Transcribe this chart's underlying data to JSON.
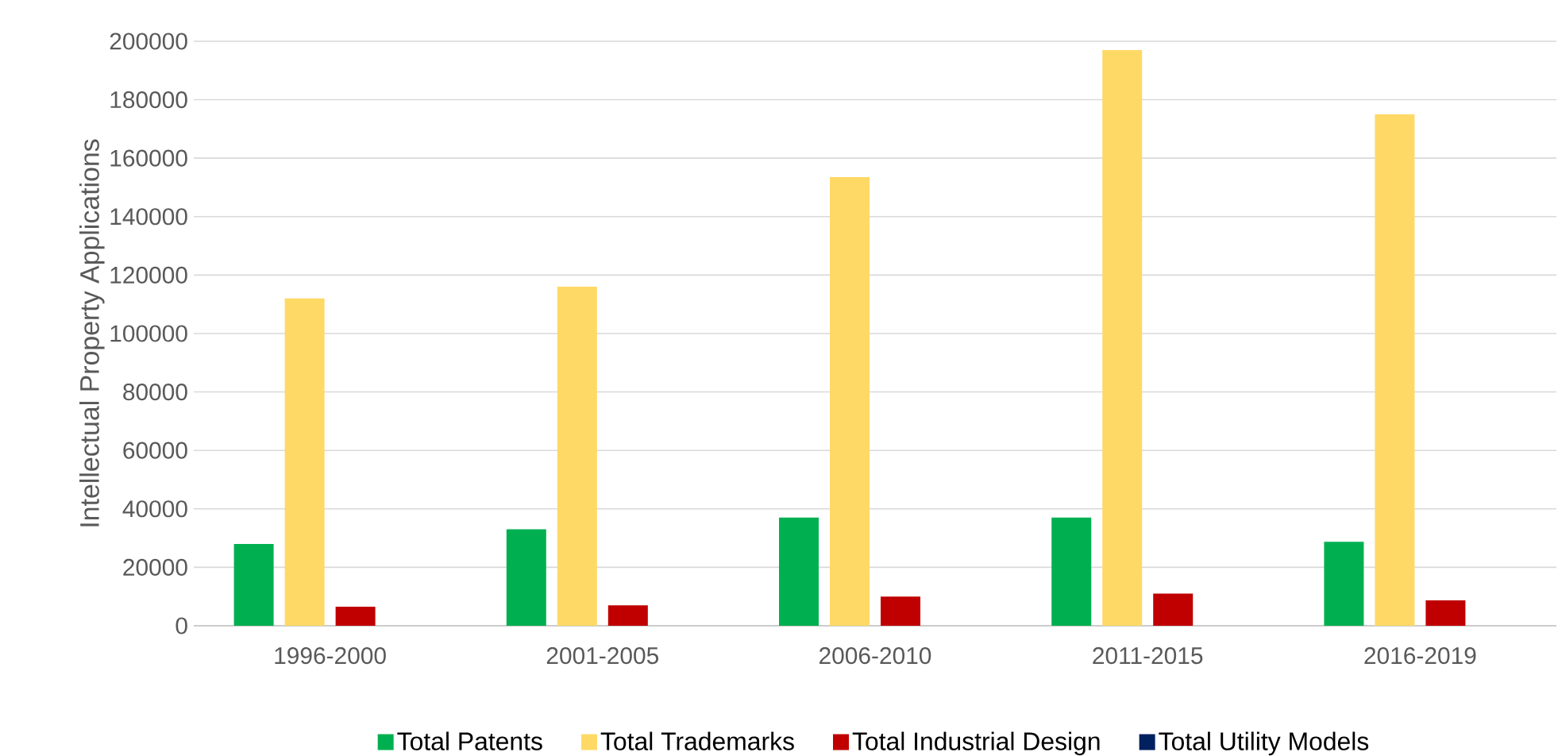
{
  "chart_data": {
    "type": "bar",
    "ylabel": "Intellectual Property Applications",
    "categories": [
      "1996-2000",
      "2001-2005",
      "2006-2010",
      "2011-2015",
      "2016-2019"
    ],
    "series": [
      {
        "name": "Total Patents",
        "color": "#00b050",
        "values": [
          28000,
          33000,
          37000,
          37000,
          28700
        ]
      },
      {
        "name": "Total Trademarks",
        "color": "#ffd966",
        "values": [
          112000,
          116000,
          153500,
          197000,
          175000
        ]
      },
      {
        "name": "Total Industrial Design",
        "color": "#c00000",
        "values": [
          6500,
          7000,
          10000,
          11000,
          8700
        ]
      },
      {
        "name": "Total Utility Models",
        "color": "#002060",
        "values": [
          0,
          0,
          0,
          0,
          0
        ]
      }
    ],
    "ylim": [
      0,
      200000
    ],
    "yticks": [
      0,
      20000,
      40000,
      60000,
      80000,
      100000,
      120000,
      140000,
      160000,
      180000,
      200000
    ],
    "grid": "y",
    "legend": "bottom"
  }
}
